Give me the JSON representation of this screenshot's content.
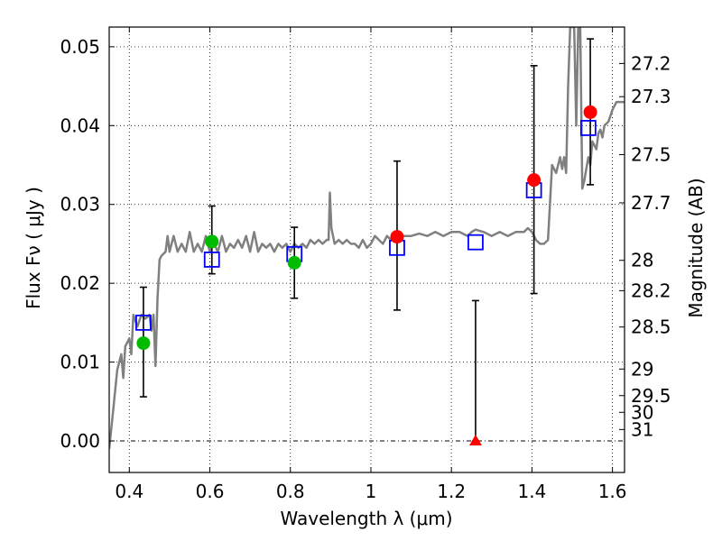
{
  "chart_data": {
    "type": "scatter",
    "title": "",
    "xlabel": "Wavelength  λ (μm)",
    "ylabel": "Flux  Fν  ( μJy )",
    "ylabel_right": "Magnitude (AB)",
    "xlim": [
      0.35,
      1.63
    ],
    "ylim": [
      -0.004,
      0.0525
    ],
    "grid": true,
    "x_ticks": [
      0.4,
      0.6,
      0.8,
      1.0,
      1.2,
      1.4,
      1.6
    ],
    "x_tick_labels": [
      "0.4",
      "0.6",
      "0.8",
      "1",
      "1.2",
      "1.4",
      "1.6"
    ],
    "y_ticks": [
      0.0,
      0.01,
      0.02,
      0.03,
      0.04,
      0.05
    ],
    "y_tick_labels": [
      "0.00",
      "0.01",
      "0.02",
      "0.03",
      "0.04",
      "0.05"
    ],
    "right_ticks": [
      {
        "flux": 0.04788,
        "label": "27.2"
      },
      {
        "flux": 0.04367,
        "label": "27.3"
      },
      {
        "flux": 0.03632,
        "label": "27.5"
      },
      {
        "flux": 0.0302,
        "label": "27.7"
      },
      {
        "flux": 0.02291,
        "label": "28"
      },
      {
        "flux": 0.01906,
        "label": "28.2"
      },
      {
        "flux": 0.01445,
        "label": "28.5"
      },
      {
        "flux": 0.00912,
        "label": "29"
      },
      {
        "flux": 0.00575,
        "label": "29.5"
      },
      {
        "flux": 0.00363,
        "label": "30"
      },
      {
        "flux": 0.00145,
        "label": "31"
      }
    ],
    "colors": {
      "spectrum": "#808080",
      "model": "#0000ff",
      "observed_detection": "#ff0000",
      "observed_green": "#00bb00",
      "upper_limit": "#ff0000",
      "errorbar": "#000000",
      "zero_line": "#000000"
    },
    "spectrum": [
      [
        0.35,
        -0.001
      ],
      [
        0.36,
        0.004
      ],
      [
        0.37,
        0.009
      ],
      [
        0.38,
        0.011
      ],
      [
        0.385,
        0.008
      ],
      [
        0.39,
        0.012
      ],
      [
        0.4,
        0.013
      ],
      [
        0.405,
        0.011
      ],
      [
        0.41,
        0.016
      ],
      [
        0.42,
        0.0145
      ],
      [
        0.43,
        0.016
      ],
      [
        0.44,
        0.0155
      ],
      [
        0.45,
        0.016
      ],
      [
        0.455,
        0.014
      ],
      [
        0.46,
        0.016
      ],
      [
        0.465,
        0.0095
      ],
      [
        0.47,
        0.018
      ],
      [
        0.475,
        0.023
      ],
      [
        0.48,
        0.0235
      ],
      [
        0.49,
        0.024
      ],
      [
        0.495,
        0.026
      ],
      [
        0.5,
        0.024
      ],
      [
        0.505,
        0.025
      ],
      [
        0.51,
        0.026
      ],
      [
        0.52,
        0.024
      ],
      [
        0.53,
        0.025
      ],
      [
        0.54,
        0.024
      ],
      [
        0.55,
        0.0265
      ],
      [
        0.56,
        0.024
      ],
      [
        0.57,
        0.025
      ],
      [
        0.58,
        0.024
      ],
      [
        0.59,
        0.026
      ],
      [
        0.6,
        0.024
      ],
      [
        0.61,
        0.025
      ],
      [
        0.62,
        0.024
      ],
      [
        0.63,
        0.026
      ],
      [
        0.64,
        0.024
      ],
      [
        0.65,
        0.025
      ],
      [
        0.66,
        0.0245
      ],
      [
        0.67,
        0.0255
      ],
      [
        0.68,
        0.0245
      ],
      [
        0.69,
        0.026
      ],
      [
        0.7,
        0.024
      ],
      [
        0.71,
        0.0265
      ],
      [
        0.72,
        0.024
      ],
      [
        0.73,
        0.025
      ],
      [
        0.74,
        0.0245
      ],
      [
        0.75,
        0.025
      ],
      [
        0.76,
        0.024
      ],
      [
        0.77,
        0.025
      ],
      [
        0.78,
        0.0245
      ],
      [
        0.79,
        0.025
      ],
      [
        0.8,
        0.024
      ],
      [
        0.81,
        0.025
      ],
      [
        0.82,
        0.0245
      ],
      [
        0.83,
        0.025
      ],
      [
        0.84,
        0.0245
      ],
      [
        0.85,
        0.0255
      ],
      [
        0.86,
        0.025
      ],
      [
        0.87,
        0.0255
      ],
      [
        0.88,
        0.025
      ],
      [
        0.89,
        0.0255
      ],
      [
        0.895,
        0.0255
      ],
      [
        0.898,
        0.0315
      ],
      [
        0.902,
        0.027
      ],
      [
        0.91,
        0.025
      ],
      [
        0.92,
        0.0255
      ],
      [
        0.93,
        0.025
      ],
      [
        0.94,
        0.0255
      ],
      [
        0.95,
        0.025
      ],
      [
        0.96,
        0.025
      ],
      [
        0.97,
        0.0245
      ],
      [
        0.98,
        0.0255
      ],
      [
        0.99,
        0.0245
      ],
      [
        1.0,
        0.025
      ],
      [
        1.01,
        0.026
      ],
      [
        1.02,
        0.0255
      ],
      [
        1.03,
        0.025
      ],
      [
        1.04,
        0.026
      ],
      [
        1.05,
        0.0255
      ],
      [
        1.06,
        0.026
      ],
      [
        1.07,
        0.0255
      ],
      [
        1.08,
        0.026
      ],
      [
        1.1,
        0.026
      ],
      [
        1.12,
        0.0263
      ],
      [
        1.14,
        0.026
      ],
      [
        1.16,
        0.0265
      ],
      [
        1.18,
        0.026
      ],
      [
        1.2,
        0.0265
      ],
      [
        1.22,
        0.0265
      ],
      [
        1.24,
        0.026
      ],
      [
        1.25,
        0.0265
      ],
      [
        1.26,
        0.0268
      ],
      [
        1.28,
        0.0265
      ],
      [
        1.3,
        0.026
      ],
      [
        1.32,
        0.0265
      ],
      [
        1.34,
        0.026
      ],
      [
        1.36,
        0.0265
      ],
      [
        1.38,
        0.0265
      ],
      [
        1.39,
        0.027
      ],
      [
        1.4,
        0.0265
      ],
      [
        1.41,
        0.0255
      ],
      [
        1.42,
        0.025
      ],
      [
        1.43,
        0.025
      ],
      [
        1.44,
        0.0255
      ],
      [
        1.45,
        0.035
      ],
      [
        1.46,
        0.034
      ],
      [
        1.47,
        0.036
      ],
      [
        1.475,
        0.0345
      ],
      [
        1.48,
        0.036
      ],
      [
        1.485,
        0.034
      ],
      [
        1.49,
        0.045
      ],
      [
        1.495,
        0.0525
      ],
      [
        1.5,
        0.0525
      ],
      [
        1.505,
        0.0525
      ],
      [
        1.51,
        0.04
      ],
      [
        1.515,
        0.0525
      ],
      [
        1.52,
        0.0525
      ],
      [
        1.525,
        0.032
      ],
      [
        1.53,
        0.033
      ],
      [
        1.535,
        0.0345
      ],
      [
        1.54,
        0.036
      ],
      [
        1.545,
        0.035
      ],
      [
        1.55,
        0.038
      ],
      [
        1.56,
        0.037
      ],
      [
        1.565,
        0.039
      ],
      [
        1.57,
        0.0395
      ],
      [
        1.575,
        0.0385
      ],
      [
        1.58,
        0.04
      ],
      [
        1.59,
        0.0405
      ],
      [
        1.6,
        0.042
      ],
      [
        1.61,
        0.043
      ],
      [
        1.62,
        0.043
      ],
      [
        1.63,
        0.043
      ]
    ],
    "model_points": [
      {
        "x": 0.435,
        "y": 0.015
      },
      {
        "x": 0.605,
        "y": 0.023
      },
      {
        "x": 0.81,
        "y": 0.0237
      },
      {
        "x": 1.065,
        "y": 0.0245
      },
      {
        "x": 1.26,
        "y": 0.0252
      },
      {
        "x": 1.405,
        "y": 0.0318
      },
      {
        "x": 1.54,
        "y": 0.0397
      }
    ],
    "observed_green": [
      {
        "x": 0.435,
        "y": 0.0124,
        "yerr_low": 0.0068,
        "yerr_high": 0.0071
      },
      {
        "x": 0.605,
        "y": 0.0253,
        "yerr_low": 0.0041,
        "yerr_high": 0.0045
      },
      {
        "x": 0.81,
        "y": 0.0226,
        "yerr_low": 0.0045,
        "yerr_high": 0.0045
      }
    ],
    "observed_red": [
      {
        "x": 1.065,
        "y": 0.0259,
        "yerr_low": 0.0093,
        "yerr_high": 0.0096
      },
      {
        "x": 1.405,
        "y": 0.0331,
        "yerr_low": 0.0144,
        "yerr_high": 0.0145
      },
      {
        "x": 1.545,
        "y": 0.0417,
        "yerr_low": 0.0092,
        "yerr_high": 0.0093
      }
    ],
    "upper_limits": [
      {
        "x": 1.26,
        "y": 0.0,
        "y_top": 0.0178
      }
    ]
  }
}
